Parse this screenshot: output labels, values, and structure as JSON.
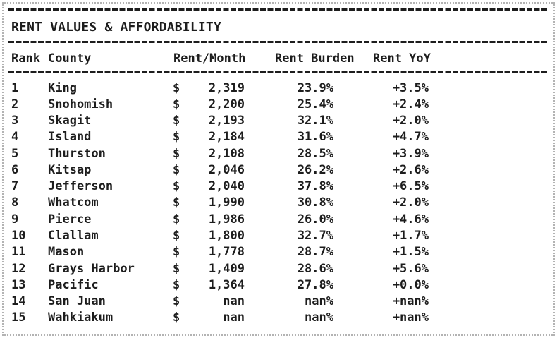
{
  "report": {
    "title": "RENT VALUES & AFFORDABILITY",
    "dollar": "$"
  },
  "colors": {
    "text": "#1d1d1d",
    "border_dotted": "#b3b3b3",
    "background": "#ffffff"
  },
  "chart_data": {
    "type": "table",
    "title": "RENT VALUES & AFFORDABILITY",
    "columns": [
      "Rank",
      "County",
      "Rent/Month",
      "Rent Burden",
      "Rent YoY"
    ],
    "rows": [
      {
        "rank": "1",
        "county": "King",
        "rent": "2,319",
        "burden": "23.9%",
        "yoy": "+3.5%"
      },
      {
        "rank": "2",
        "county": "Snohomish",
        "rent": "2,200",
        "burden": "25.4%",
        "yoy": "+2.4%"
      },
      {
        "rank": "3",
        "county": "Skagit",
        "rent": "2,193",
        "burden": "32.1%",
        "yoy": "+2.0%"
      },
      {
        "rank": "4",
        "county": "Island",
        "rent": "2,184",
        "burden": "31.6%",
        "yoy": "+4.7%"
      },
      {
        "rank": "5",
        "county": "Thurston",
        "rent": "2,108",
        "burden": "28.5%",
        "yoy": "+3.9%"
      },
      {
        "rank": "6",
        "county": "Kitsap",
        "rent": "2,046",
        "burden": "26.2%",
        "yoy": "+2.6%"
      },
      {
        "rank": "7",
        "county": "Jefferson",
        "rent": "2,040",
        "burden": "37.8%",
        "yoy": "+6.5%"
      },
      {
        "rank": "8",
        "county": "Whatcom",
        "rent": "1,990",
        "burden": "30.8%",
        "yoy": "+2.0%"
      },
      {
        "rank": "9",
        "county": "Pierce",
        "rent": "1,986",
        "burden": "26.0%",
        "yoy": "+4.6%"
      },
      {
        "rank": "10",
        "county": "Clallam",
        "rent": "1,800",
        "burden": "32.7%",
        "yoy": "+1.7%"
      },
      {
        "rank": "11",
        "county": "Mason",
        "rent": "1,778",
        "burden": "28.7%",
        "yoy": "+1.5%"
      },
      {
        "rank": "12",
        "county": "Grays Harbor",
        "rent": "1,409",
        "burden": "28.6%",
        "yoy": "+5.6%"
      },
      {
        "rank": "13",
        "county": "Pacific",
        "rent": "1,364",
        "burden": "27.8%",
        "yoy": "+0.0%"
      },
      {
        "rank": "14",
        "county": "San Juan",
        "rent": "nan",
        "burden": "nan%",
        "yoy": "+nan%"
      },
      {
        "rank": "15",
        "county": "Wahkiakum",
        "rent": "nan",
        "burden": "nan%",
        "yoy": "+nan%"
      }
    ]
  }
}
